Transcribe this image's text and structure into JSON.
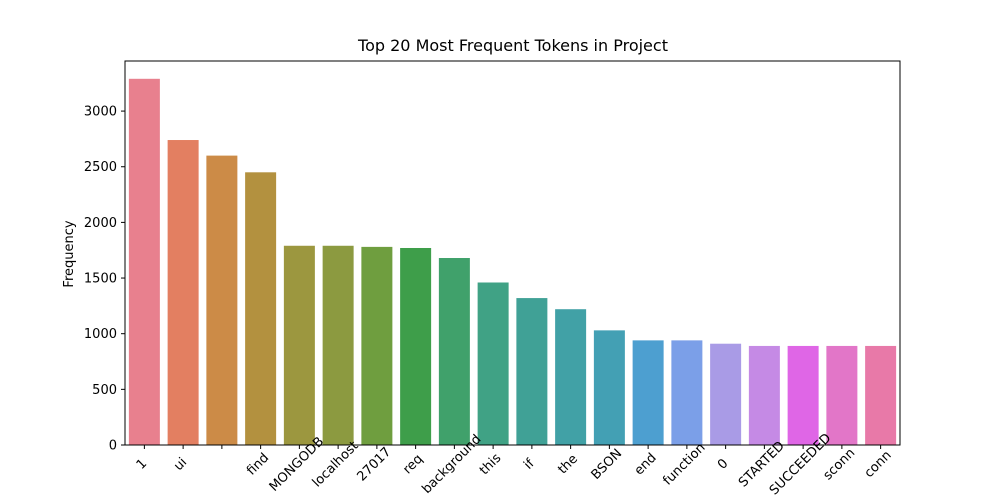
{
  "chart_data": {
    "type": "bar",
    "title": "Top 20 Most Frequent Tokens in Project",
    "xlabel": "",
    "ylabel": "Frequency",
    "ylim": [
      0,
      3450
    ],
    "yticks": [
      0,
      500,
      1000,
      1500,
      2000,
      2500,
      3000
    ],
    "grid": false,
    "categories": [
      "1",
      "ui",
      "",
      "find",
      "MONGODB",
      "localhost",
      "27017",
      "req",
      "background",
      "this",
      "if",
      "the",
      "BSON",
      "end",
      "function",
      "0",
      "STARTED",
      "SUCCEEDED",
      "sconn",
      "conn"
    ],
    "values": [
      3290,
      2740,
      2600,
      2450,
      1790,
      1790,
      1780,
      1770,
      1680,
      1460,
      1320,
      1220,
      1030,
      940,
      940,
      910,
      890,
      890,
      890,
      890
    ],
    "colors": [
      "#e8808e",
      "#e37f61",
      "#cc8b47",
      "#b3913f",
      "#9c973f",
      "#8c9a40",
      "#6f9e3f",
      "#3e9e4a",
      "#40a16b",
      "#40a285",
      "#40a196",
      "#41a1a6",
      "#43a0b4",
      "#4d9fd0",
      "#7b9fe8",
      "#a99be6",
      "#c58ae5",
      "#df66e6",
      "#e276c8",
      "#e879a8"
    ]
  }
}
